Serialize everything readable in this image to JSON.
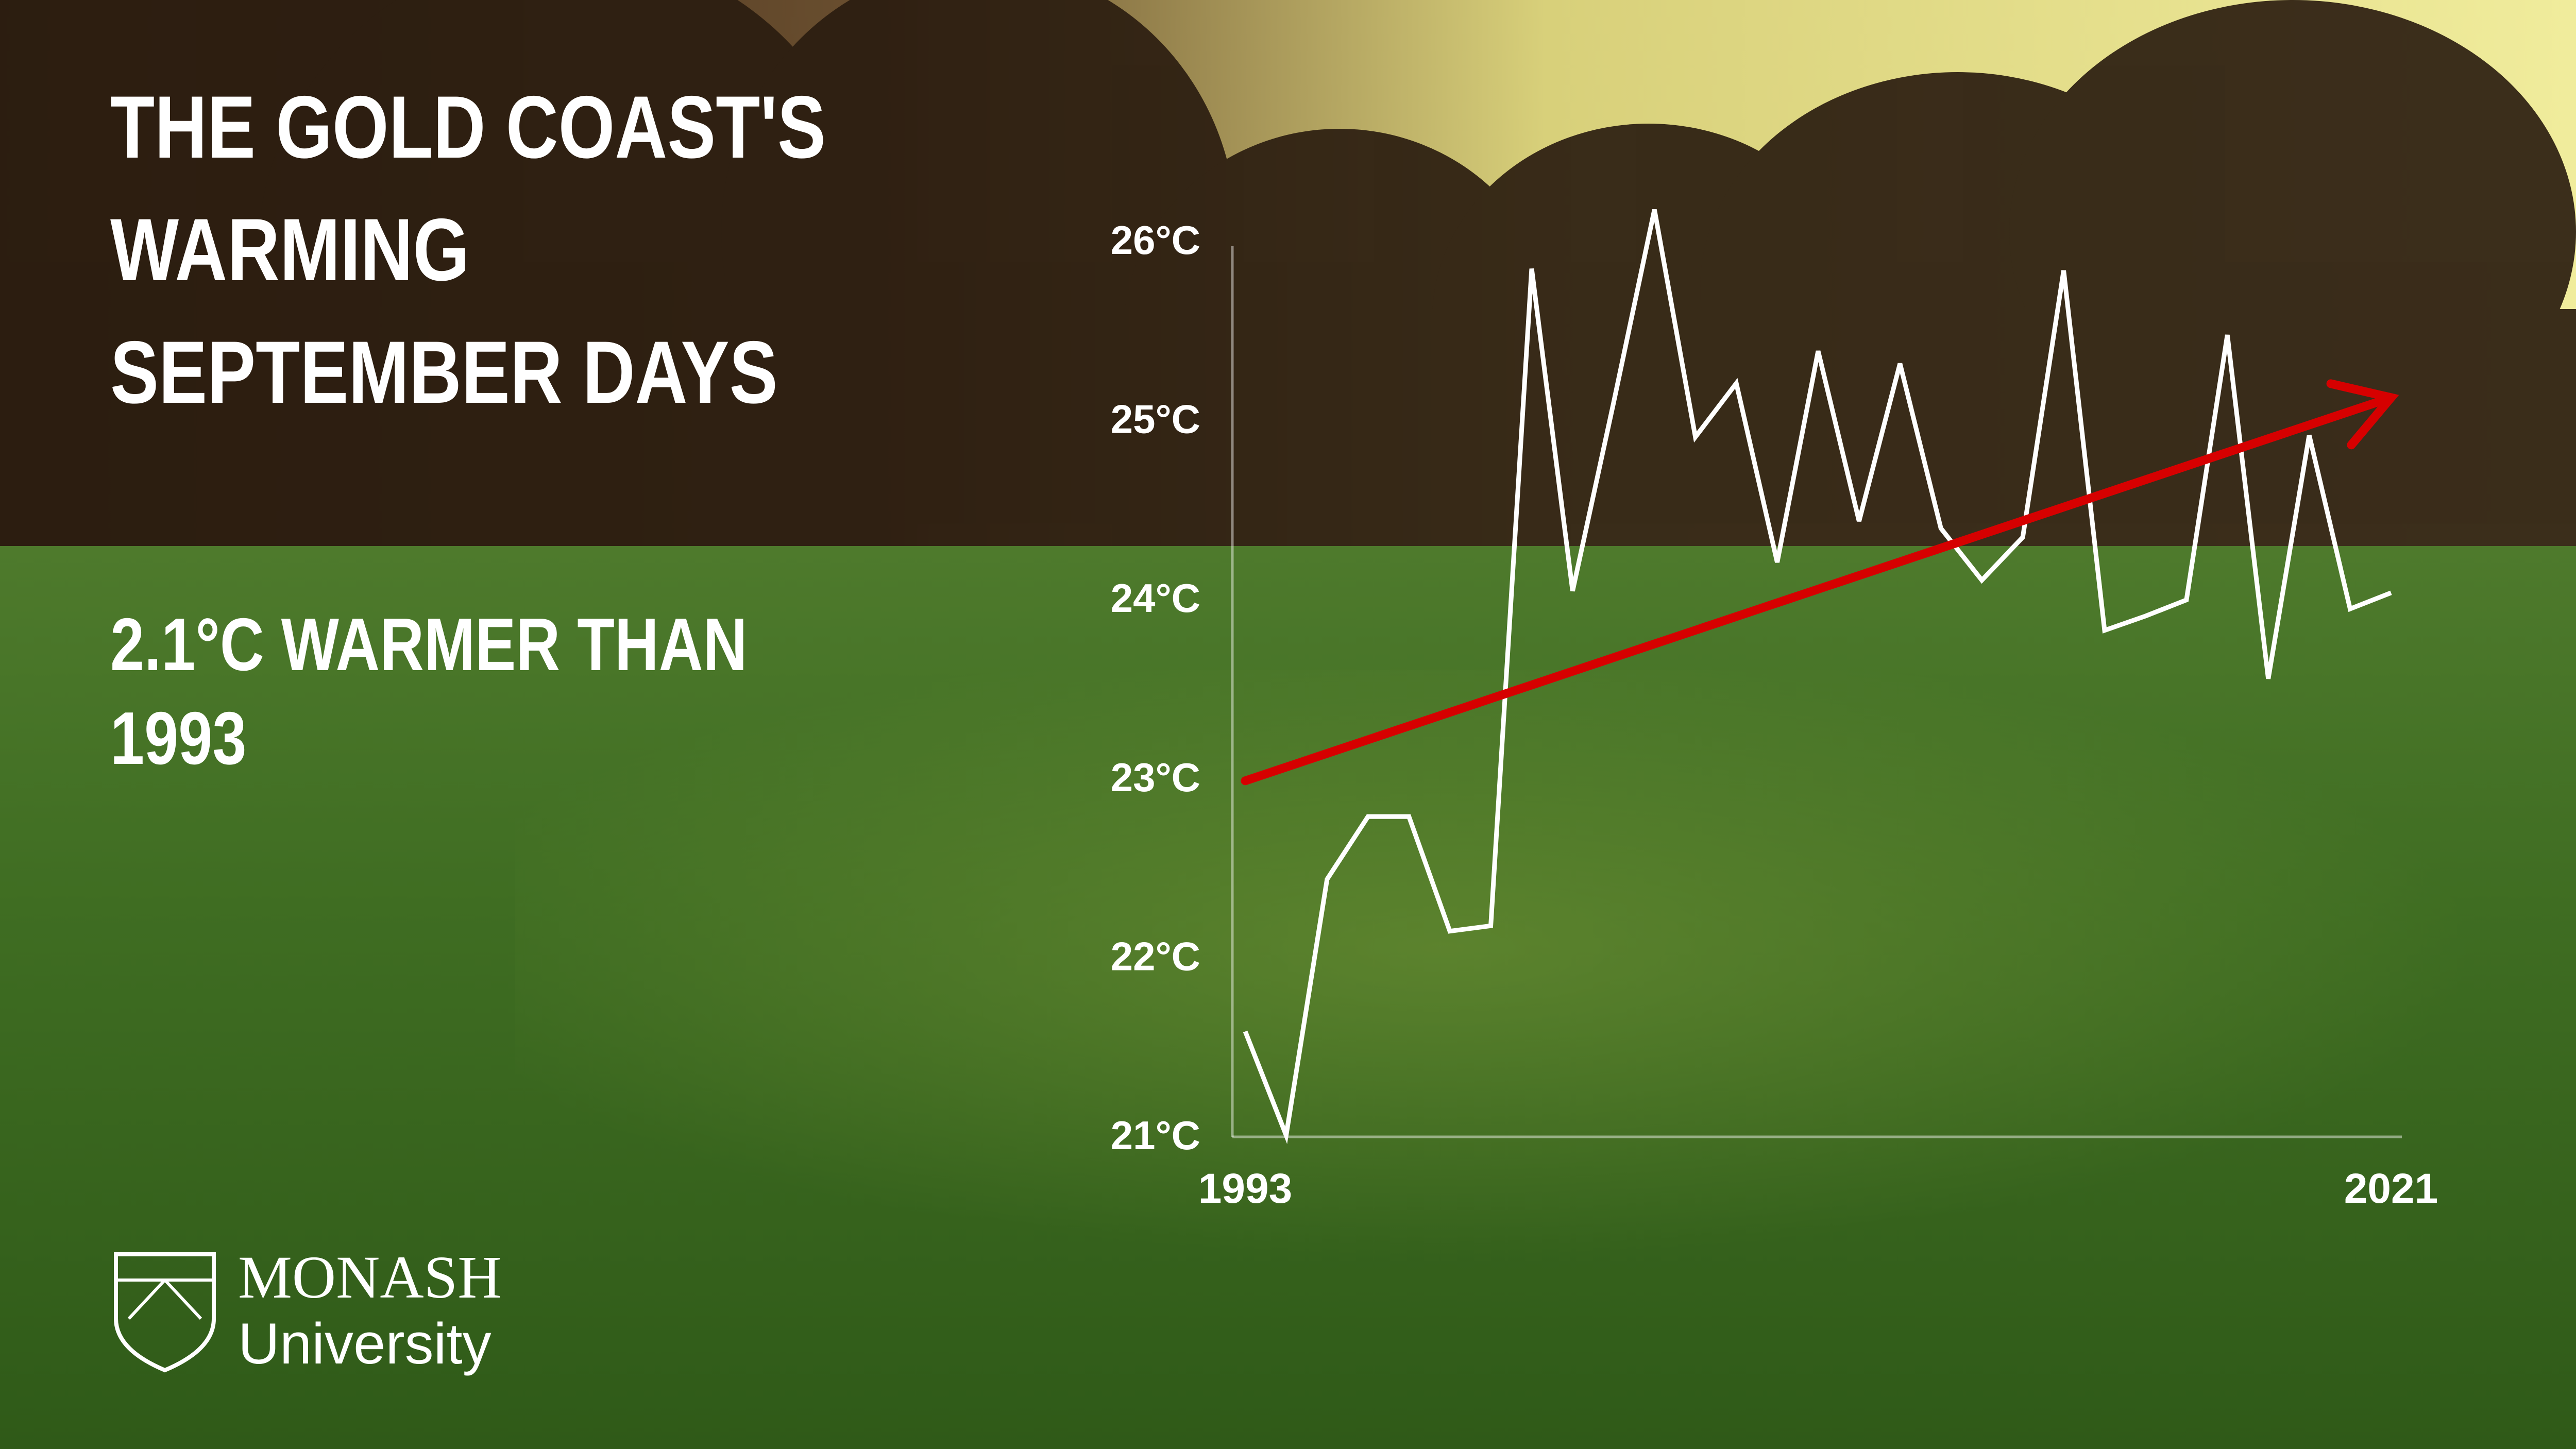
{
  "chart_data": {
    "type": "line",
    "title": [
      "THE GOLD COAST'S",
      "WARMING",
      "SEPTEMBER DAYS"
    ],
    "subtitle": [
      "2.1°C WARMER THAN",
      "1993"
    ],
    "x": [
      1993,
      1994,
      1995,
      1996,
      1997,
      1998,
      1999,
      2000,
      2001,
      2002,
      2003,
      2004,
      2005,
      2006,
      2007,
      2008,
      2009,
      2010,
      2011,
      2012,
      2013,
      2014,
      2015,
      2016,
      2017,
      2018,
      2019,
      2020,
      2021
    ],
    "values": [
      21.58,
      21.0,
      22.43,
      22.78,
      22.78,
      22.14,
      22.17,
      25.84,
      24.04,
      25.09,
      26.17,
      24.9,
      25.2,
      24.2,
      25.38,
      24.43,
      25.31,
      24.39,
      24.1,
      24.34,
      25.83,
      23.82,
      23.9,
      23.99,
      25.47,
      23.55,
      24.91,
      23.94,
      24.03
    ],
    "color": "#ffffff",
    "trend": {
      "x": [
        1993,
        2021
      ],
      "values": [
        22.98,
        25.12
      ],
      "color": "#d60000"
    },
    "xlim": [
      1993,
      2021
    ],
    "xticks": [
      1993,
      2021
    ],
    "ylim": [
      21,
      26
    ],
    "yticks": [
      {
        "value": 21,
        "label": "21°C"
      },
      {
        "value": 22,
        "label": "22°C"
      },
      {
        "value": 23,
        "label": "23°C"
      },
      {
        "value": 24,
        "label": "24°C"
      },
      {
        "value": 25,
        "label": "25°C"
      },
      {
        "value": 26,
        "label": "26°C"
      }
    ],
    "grid": false,
    "logo": [
      "MONASH",
      "University"
    ]
  }
}
